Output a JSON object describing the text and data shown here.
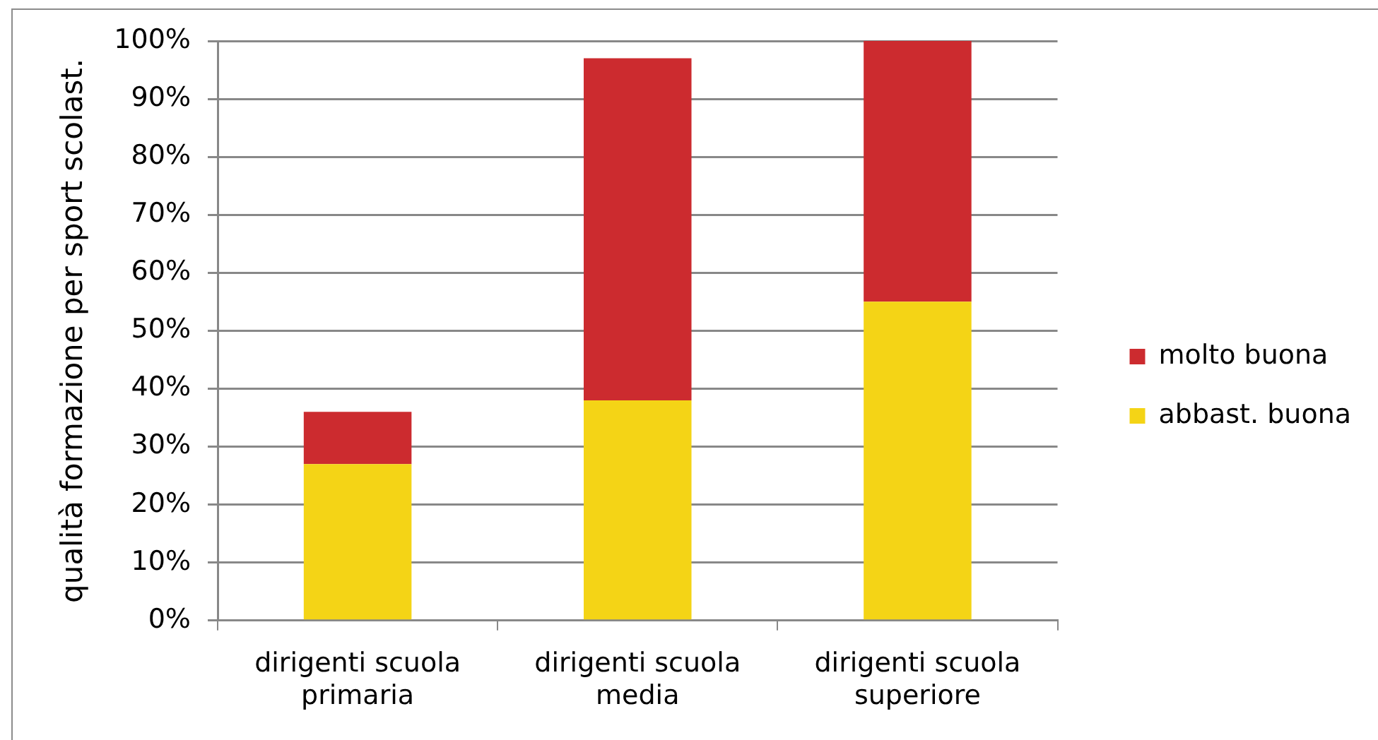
{
  "chart_data": {
    "type": "bar",
    "stacked": true,
    "categories": [
      "dirigenti scuola primaria",
      "dirigenti scuola media",
      "dirigenti scuola superiore"
    ],
    "series": [
      {
        "name": "abbast. buona",
        "color": "#f4d416",
        "values": [
          27,
          38,
          55
        ]
      },
      {
        "name": "molto buona",
        "color": "#cc2b2f",
        "values": [
          9,
          59,
          45
        ]
      }
    ],
    "ylabel": "qualità formazione per sport scolast.",
    "ylim": [
      0,
      100
    ],
    "yticks": [
      {
        "value": 0,
        "label": "0%"
      },
      {
        "value": 10,
        "label": "10%"
      },
      {
        "value": 20,
        "label": "20%"
      },
      {
        "value": 30,
        "label": "30%"
      },
      {
        "value": 40,
        "label": "40%"
      },
      {
        "value": 50,
        "label": "50%"
      },
      {
        "value": 60,
        "label": "60%"
      },
      {
        "value": 70,
        "label": "70%"
      },
      {
        "value": 80,
        "label": "80%"
      },
      {
        "value": 90,
        "label": "90%"
      },
      {
        "value": 100,
        "label": "100%"
      }
    ],
    "grid": "y",
    "legend": "right"
  }
}
